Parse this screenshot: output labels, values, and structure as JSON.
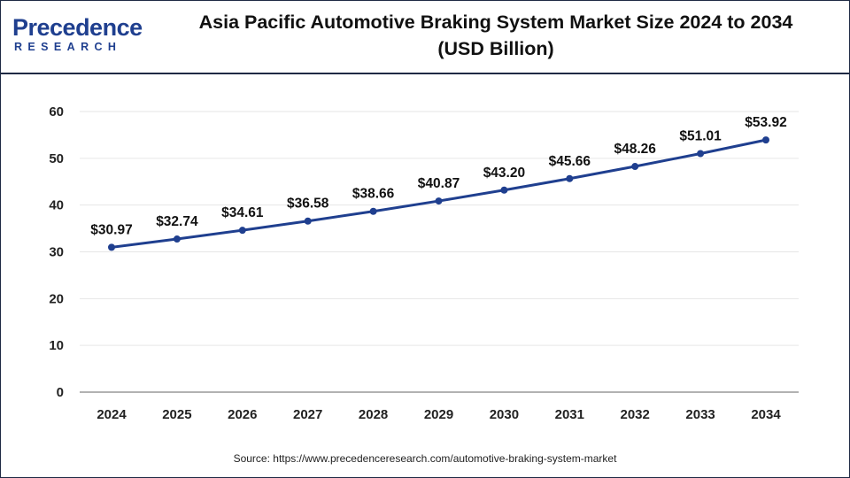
{
  "header": {
    "logo_main": "Precedence",
    "logo_sub": "RESEARCH",
    "title_line1": "Asia Pacific Automotive Braking System Market Size 2024 to 2034",
    "title_line2": "(USD Billion)"
  },
  "source": "Source: https://www.precedenceresearch.com/automotive-braking-system-market",
  "colors": {
    "line": "#1f3f8f",
    "grid": "#e6e6e6",
    "axis": "#999999",
    "frame": "#1f2a44"
  },
  "chart_data": {
    "type": "line",
    "title": "Asia Pacific Automotive Braking System Market Size 2024 to 2034 (USD Billion)",
    "categories": [
      "2024",
      "2025",
      "2026",
      "2027",
      "2028",
      "2029",
      "2030",
      "2031",
      "2032",
      "2033",
      "2034"
    ],
    "values": [
      30.97,
      32.74,
      34.61,
      36.58,
      38.66,
      40.87,
      43.2,
      45.66,
      48.26,
      51.01,
      53.92
    ],
    "data_labels": [
      "$30.97",
      "$32.74",
      "$34.61",
      "$36.58",
      "$38.66",
      "$40.87",
      "$43.20",
      "$45.66",
      "$48.26",
      "$51.01",
      "$53.92"
    ],
    "yticks": [
      0,
      10,
      20,
      30,
      40,
      50,
      60
    ],
    "ylim": [
      0,
      60
    ],
    "xlabel": "",
    "ylabel": "",
    "grid": true,
    "legend": "none"
  }
}
